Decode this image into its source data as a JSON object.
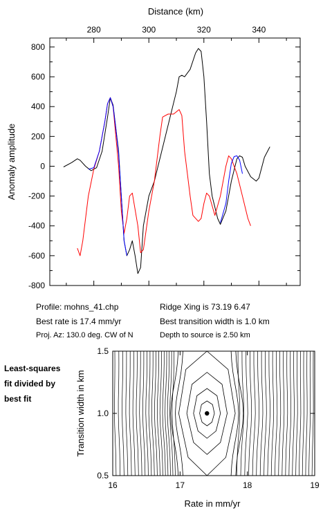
{
  "chart_data": [
    {
      "type": "line",
      "xlabel": "Distance (km)",
      "ylabel": "Anomaly amplitude",
      "xlim": [
        264,
        355
      ],
      "ylim": [
        -800,
        860
      ],
      "xticks": [
        280,
        300,
        320,
        340
      ],
      "yticks": [
        -800,
        -600,
        -400,
        -200,
        0,
        200,
        400,
        600,
        800
      ],
      "series": [
        {
          "color": "#000000",
          "points": [
            [
              269,
              -5
            ],
            [
              272,
              25
            ],
            [
              274,
              50
            ],
            [
              275,
              40
            ],
            [
              277,
              0
            ],
            [
              279,
              -30
            ],
            [
              281,
              -10
            ],
            [
              283,
              100
            ],
            [
              285,
              330
            ],
            [
              286,
              460
            ],
            [
              287,
              410
            ],
            [
              289,
              100
            ],
            [
              290,
              -200
            ],
            [
              291,
              -500
            ],
            [
              292,
              -600
            ],
            [
              293,
              -560
            ],
            [
              294,
              -500
            ],
            [
              295,
              -600
            ],
            [
              296,
              -720
            ],
            [
              297,
              -680
            ],
            [
              298,
              -400
            ],
            [
              300,
              -200
            ],
            [
              302,
              -100
            ],
            [
              304,
              50
            ],
            [
              306,
              200
            ],
            [
              308,
              350
            ],
            [
              310,
              500
            ],
            [
              311,
              600
            ],
            [
              312,
              610
            ],
            [
              313,
              600
            ],
            [
              315,
              650
            ],
            [
              317,
              760
            ],
            [
              318,
              790
            ],
            [
              319,
              770
            ],
            [
              320,
              600
            ],
            [
              321,
              300
            ],
            [
              322,
              -50
            ],
            [
              323,
              -200
            ],
            [
              325,
              -350
            ],
            [
              326,
              -390
            ],
            [
              328,
              -300
            ],
            [
              330,
              -100
            ],
            [
              332,
              50
            ],
            [
              333,
              70
            ],
            [
              334,
              60
            ],
            [
              335,
              0
            ],
            [
              337,
              -70
            ],
            [
              339,
              -100
            ],
            [
              340,
              -80
            ],
            [
              342,
              60
            ],
            [
              344,
              130
            ]
          ]
        },
        {
          "color": "#ff0000",
          "points": [
            [
              274,
              -550
            ],
            [
              275,
              -600
            ],
            [
              276,
              -500
            ],
            [
              278,
              -200
            ],
            [
              280,
              -20
            ],
            [
              282,
              100
            ],
            [
              284,
              300
            ],
            [
              285,
              420
            ],
            [
              286,
              460
            ],
            [
              287,
              400
            ],
            [
              289,
              0
            ],
            [
              290,
              -300
            ],
            [
              291,
              -450
            ],
            [
              292,
              -350
            ],
            [
              293,
              -200
            ],
            [
              294,
              -180
            ],
            [
              296,
              -400
            ],
            [
              297,
              -580
            ],
            [
              298,
              -560
            ],
            [
              300,
              -300
            ],
            [
              302,
              -100
            ],
            [
              304,
              200
            ],
            [
              305,
              330
            ],
            [
              307,
              350
            ],
            [
              309,
              350
            ],
            [
              311,
              380
            ],
            [
              312,
              340
            ],
            [
              313,
              100
            ],
            [
              315,
              -200
            ],
            [
              316,
              -330
            ],
            [
              318,
              -370
            ],
            [
              319,
              -350
            ],
            [
              320,
              -250
            ],
            [
              321,
              -180
            ],
            [
              322,
              -200
            ],
            [
              324,
              -330
            ],
            [
              326,
              -200
            ],
            [
              328,
              0
            ],
            [
              329,
              70
            ],
            [
              330,
              50
            ],
            [
              332,
              -50
            ],
            [
              334,
              -200
            ],
            [
              336,
              -350
            ],
            [
              337,
              -400
            ]
          ]
        },
        {
          "color": "#0000ff",
          "points": [
            [
              278,
              -20
            ],
            [
              280,
              -10
            ],
            [
              282,
              100
            ],
            [
              284,
              300
            ],
            [
              285,
              420
            ],
            [
              286,
              460
            ],
            [
              287,
              400
            ],
            [
              288,
              250
            ],
            [
              289,
              80
            ],
            [
              290,
              -200
            ],
            [
              291,
              -500
            ],
            [
              292,
              -600
            ],
            [
              326,
              -380
            ],
            [
              328,
              -250
            ],
            [
              329,
              -100
            ],
            [
              330,
              20
            ],
            [
              331,
              65
            ],
            [
              332,
              70
            ],
            [
              333,
              40
            ],
            [
              334,
              -50
            ]
          ]
        }
      ]
    },
    {
      "type": "contour",
      "xlabel": "Rate in mm/yr",
      "ylabel": "Transition width in km",
      "xlim": [
        16,
        19
      ],
      "ylim": [
        0.5,
        1.5
      ],
      "xticks": [
        16,
        17,
        18,
        19
      ],
      "yticks": [
        0.5,
        1.0,
        1.5
      ],
      "best_fit": {
        "rate": 17.4,
        "width": 1.0
      }
    }
  ],
  "info": {
    "profile": "Profile: mohns_41.chp",
    "best_rate": "Best rate is 17.4 mm/yr",
    "proj_az": "Proj. Az: 130.0 deg. CW of N",
    "ridge_xing": "Ridge Xing is 73.19 6.47",
    "best_width": "Best transition width is 1.0 km",
    "depth": "Depth to source is   2.50 km"
  },
  "side_label": [
    "Least-squares",
    "fit divided by",
    "best fit"
  ]
}
